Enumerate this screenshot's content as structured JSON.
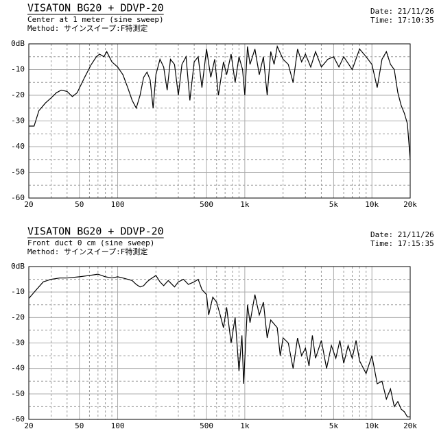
{
  "chart_data": [
    {
      "type": "line",
      "title": "VISATON BG20 + DDVP-20",
      "subtitle": "Center at 1 meter (sine sweep)",
      "method": "Method: サインスイープ:F特測定",
      "date": "Date: 21/11/26",
      "time": "Time: 17:10:35",
      "xscale": "log",
      "color": "#000000",
      "grid": true,
      "xlim": [
        20,
        20000
      ],
      "ylim": [
        -60,
        0
      ],
      "xticks": [
        20,
        50,
        100,
        500,
        {
          "value": 1000,
          "label": "1k"
        },
        {
          "value": 5000,
          "label": "5k"
        },
        {
          "value": 10000,
          "label": "10k"
        },
        {
          "value": 20000,
          "label": "20k"
        }
      ],
      "yticks": [
        {
          "value": 0,
          "label": "0dB"
        },
        -10,
        -20,
        -30,
        -40,
        -50,
        -60
      ],
      "xminorticks": [
        30,
        40,
        60,
        70,
        80,
        90,
        200,
        300,
        400,
        600,
        700,
        800,
        900,
        2000,
        3000,
        4000,
        6000,
        7000,
        8000,
        9000
      ],
      "yminorticks": [
        -5,
        -15,
        -25,
        -35,
        -45,
        -55
      ],
      "x": [
        20,
        22,
        24,
        27,
        30,
        33,
        36,
        40,
        44,
        48,
        55,
        62,
        68,
        72,
        78,
        82,
        90,
        100,
        110,
        120,
        130,
        140,
        150,
        160,
        170,
        180,
        190,
        200,
        215,
        230,
        245,
        260,
        280,
        300,
        320,
        345,
        370,
        400,
        430,
        460,
        500,
        540,
        580,
        620,
        680,
        720,
        780,
        840,
        900,
        960,
        1000,
        1050,
        1100,
        1200,
        1300,
        1400,
        1500,
        1600,
        1700,
        1800,
        2000,
        2200,
        2400,
        2600,
        2800,
        3000,
        3300,
        3600,
        4000,
        4500,
        5000,
        5500,
        6000,
        7000,
        8000,
        9000,
        10000,
        11000,
        12000,
        13000,
        14000,
        15000,
        16000,
        17000,
        18000,
        19000,
        20000
      ],
      "values": [
        -32,
        -32,
        -26,
        -23,
        -21,
        -19,
        -18,
        -18.5,
        -20.5,
        -19,
        -13,
        -8,
        -5,
        -4,
        -5,
        -3,
        -7,
        -9,
        -12,
        -17,
        -22,
        -25,
        -20,
        -13,
        -11,
        -14,
        -25,
        -12,
        -6,
        -9,
        -18,
        -6,
        -8,
        -20,
        -8,
        -5,
        -22,
        -7,
        -5,
        -17,
        -2,
        -13,
        -6,
        -20,
        -7,
        -12,
        -4,
        -15,
        -5,
        -10,
        -20,
        -1,
        -8,
        -2,
        -12,
        -5,
        -20,
        -3,
        -8,
        -1,
        -6,
        -8,
        -15,
        -2,
        -7,
        -4,
        -9,
        -3,
        -9,
        -6,
        -5,
        -9,
        -5,
        -10,
        -2,
        -5,
        -8,
        -17,
        -6,
        -3,
        -8,
        -10,
        -19,
        -24,
        -27,
        -31,
        -45
      ]
    },
    {
      "type": "line",
      "title": "VISATON BG20 + DDVP-20",
      "subtitle": "Front duct 0 cm (sine sweep)",
      "method": "Method: サインスイープ:F特測定",
      "date": "Date: 21/11/26",
      "time": "Time: 17:15:35",
      "xscale": "log",
      "color": "#000000",
      "grid": true,
      "xlim": [
        20,
        20000
      ],
      "ylim": [
        -60,
        0
      ],
      "xticks": [
        20,
        50,
        100,
        500,
        {
          "value": 1000,
          "label": "1k"
        },
        {
          "value": 5000,
          "label": "5k"
        },
        {
          "value": 10000,
          "label": "10k"
        },
        {
          "value": 20000,
          "label": "20k"
        }
      ],
      "yticks": [
        {
          "value": 0,
          "label": "0dB"
        },
        -10,
        -20,
        -30,
        -40,
        -50,
        -60
      ],
      "xminorticks": [
        30,
        40,
        60,
        70,
        80,
        90,
        200,
        300,
        400,
        600,
        700,
        800,
        900,
        2000,
        3000,
        4000,
        6000,
        7000,
        8000,
        9000
      ],
      "yminorticks": [
        -5,
        -15,
        -25,
        -35,
        -45,
        -55
      ],
      "x": [
        20,
        23,
        26,
        30,
        35,
        40,
        50,
        60,
        70,
        80,
        90,
        100,
        110,
        120,
        130,
        140,
        150,
        160,
        170,
        180,
        200,
        215,
        230,
        250,
        280,
        300,
        330,
        360,
        400,
        430,
        460,
        500,
        520,
        560,
        600,
        640,
        680,
        720,
        780,
        840,
        900,
        950,
        980,
        1050,
        1100,
        1200,
        1300,
        1400,
        1500,
        1600,
        1800,
        1900,
        2000,
        2200,
        2400,
        2600,
        2800,
        3000,
        3200,
        3400,
        3600,
        4000,
        4400,
        4800,
        5200,
        5600,
        6000,
        6500,
        7000,
        7500,
        8000,
        9000,
        10000,
        11000,
        12000,
        13000,
        14000,
        15000,
        16000,
        17000,
        18000,
        19000,
        20000
      ],
      "values": [
        -12.5,
        -9,
        -6,
        -5,
        -4.5,
        -4.5,
        -4,
        -3.5,
        -3,
        -4,
        -4.5,
        -4,
        -4.5,
        -5,
        -5.5,
        -7,
        -8,
        -7.5,
        -6,
        -5,
        -3.5,
        -6,
        -7.5,
        -5.5,
        -8,
        -6,
        -5,
        -7,
        -6,
        -5,
        -9,
        -11,
        -19,
        -12,
        -14,
        -19,
        -24,
        -16,
        -30,
        -20,
        -41,
        -27,
        -46,
        -15,
        -22,
        -11,
        -19,
        -14,
        -28,
        -21,
        -24,
        -35,
        -28,
        -30,
        -40,
        -28,
        -35,
        -32,
        -39,
        -27,
        -36,
        -29,
        -40,
        -31,
        -36,
        -29,
        -38,
        -31,
        -36,
        -29,
        -37,
        -42,
        -35,
        -46,
        -45,
        -52,
        -48,
        -55,
        -53,
        -56,
        -57,
        -59,
        -59
      ]
    }
  ]
}
